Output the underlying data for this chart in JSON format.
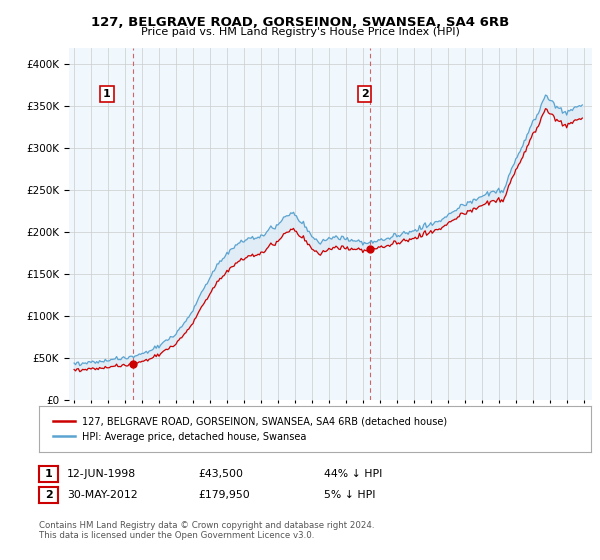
{
  "title": "127, BELGRAVE ROAD, GORSEINON, SWANSEA, SA4 6RB",
  "subtitle": "Price paid vs. HM Land Registry's House Price Index (HPI)",
  "legend_line1": "127, BELGRAVE ROAD, GORSEINON, SWANSEA, SA4 6RB (detached house)",
  "legend_line2": "HPI: Average price, detached house, Swansea",
  "sale1_label": "1",
  "sale1_date": "12-JUN-1998",
  "sale1_price": "£43,500",
  "sale1_hpi": "44% ↓ HPI",
  "sale1_year": 1998.44,
  "sale1_value": 43500,
  "sale2_label": "2",
  "sale2_date": "30-MAY-2012",
  "sale2_price": "£179,950",
  "sale2_hpi": "5% ↓ HPI",
  "sale2_year": 2012.41,
  "sale2_value": 179950,
  "footnote": "Contains HM Land Registry data © Crown copyright and database right 2024.\nThis data is licensed under the Open Government Licence v3.0.",
  "hpi_color": "#5ba3d0",
  "hpi_fill_color": "#daeaf5",
  "price_color": "#cc0000",
  "marker_color": "#cc0000",
  "background_color": "#ffffff",
  "plot_bg_color": "#f0f7fd",
  "grid_color": "#cccccc",
  "annotation_box_color": "#cc0000",
  "vline_color": "#cc6666",
  "ylim": [
    0,
    420000
  ],
  "xlim_start": 1994.7,
  "xlim_end": 2025.5
}
